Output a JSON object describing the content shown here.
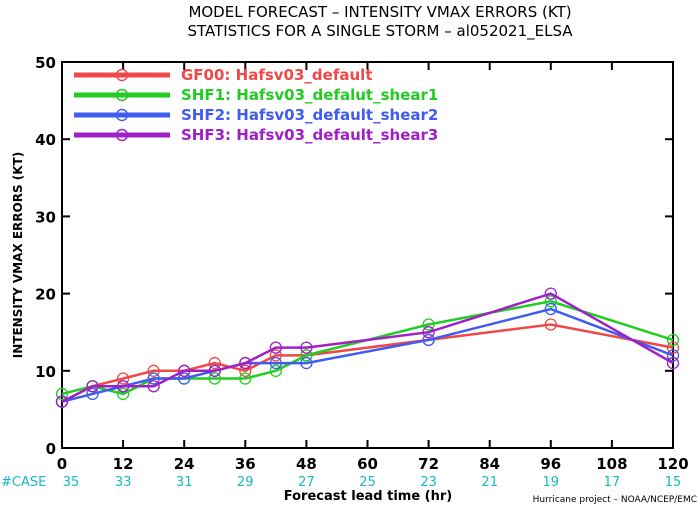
{
  "chart_data": {
    "type": "line",
    "title": "MODEL FORECAST – INTENSITY VMAX ERRORS (KT)",
    "subtitle": "STATISTICS FOR A SINGLE STORM – al052021_ELSA",
    "xlabel": "Forecast lead time (hr)",
    "ylabel": "INTENSITY VMAX ERRORS (KT)",
    "xlim": [
      0,
      120
    ],
    "ylim": [
      0,
      50
    ],
    "x_ticks": [
      0,
      12,
      24,
      36,
      48,
      60,
      72,
      84,
      96,
      108,
      120
    ],
    "y_ticks": [
      0,
      10,
      20,
      30,
      40,
      50
    ],
    "grid": false,
    "legend_position": "top-left",
    "series": [
      {
        "name": "GF00: Hafsv03_default",
        "color": "#f04848",
        "x": [
          0,
          6,
          12,
          18,
          24,
          30,
          36,
          42,
          48,
          72,
          96,
          120
        ],
        "y": [
          6,
          8,
          9,
          10,
          10,
          11,
          10,
          12,
          12,
          14,
          16,
          13
        ]
      },
      {
        "name": "SHF1: Hafsv03_defalut_shear1",
        "color": "#22cc22",
        "x": [
          0,
          6,
          12,
          18,
          24,
          30,
          36,
          42,
          48,
          72,
          96,
          120
        ],
        "y": [
          7,
          8,
          7,
          9,
          9,
          9,
          9,
          10,
          12,
          16,
          19,
          14
        ]
      },
      {
        "name": "SHF2: Hafsv03_default_shear2",
        "color": "#3f5bf0",
        "x": [
          0,
          6,
          12,
          18,
          24,
          30,
          36,
          42,
          48,
          72,
          96,
          120
        ],
        "y": [
          6,
          7,
          8,
          9,
          9,
          10,
          11,
          11,
          11,
          14,
          18,
          12
        ]
      },
      {
        "name": "SHF3: Hafsv03_default_shear3",
        "color": "#a020c8",
        "x": [
          0,
          6,
          12,
          18,
          24,
          30,
          36,
          42,
          48,
          72,
          96,
          120
        ],
        "y": [
          6,
          8,
          8,
          8,
          10,
          10,
          11,
          13,
          13,
          15,
          20,
          11
        ]
      }
    ],
    "case_label": "#CASE",
    "case_counts": [
      {
        "x": 0,
        "n": "35"
      },
      {
        "x": 12,
        "n": "33"
      },
      {
        "x": 24,
        "n": "31"
      },
      {
        "x": 36,
        "n": "29"
      },
      {
        "x": 48,
        "n": "27"
      },
      {
        "x": 60,
        "n": "25"
      },
      {
        "x": 72,
        "n": "23"
      },
      {
        "x": 84,
        "n": "21"
      },
      {
        "x": 96,
        "n": "19"
      },
      {
        "x": 108,
        "n": "17"
      },
      {
        "x": 120,
        "n": "15"
      }
    ],
    "credit": "Hurricane project – NOAA/NCEP/EMC"
  }
}
